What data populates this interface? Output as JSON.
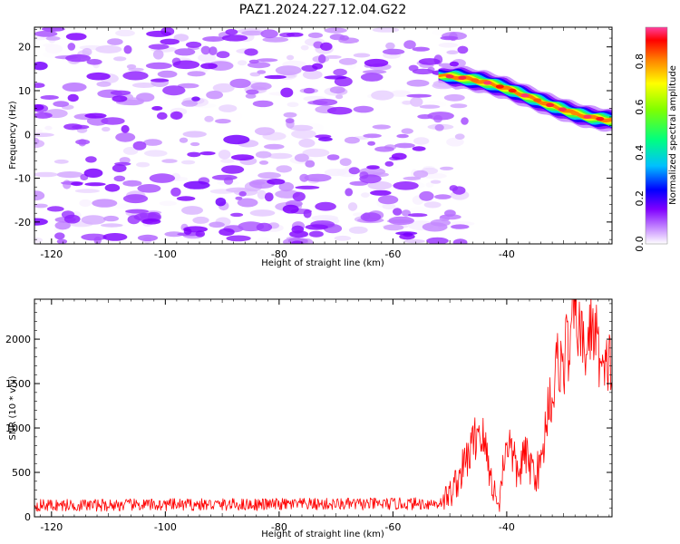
{
  "figure_title": "PAZ1.2024.227.12.04.G22",
  "chart_data": [
    {
      "type": "heatmap",
      "title": "PAZ1.2024.227.12.04.G22",
      "xlabel": "Height of straight line (km)",
      "ylabel": "Frequency (Hz)",
      "xlim": [
        -123,
        -21.5
      ],
      "ylim": [
        -25,
        24.5
      ],
      "xticks": [
        -120,
        -100,
        -80,
        -60,
        -40
      ],
      "yticks": [
        -20,
        -10,
        0,
        10,
        20
      ],
      "grid": false,
      "colorbar": {
        "label": "Normalized spectral amplitude",
        "range": [
          0,
          0.95
        ],
        "ticks": [
          0.0,
          0.2,
          0.4,
          0.6,
          0.8
        ],
        "colormap": [
          "#ffffff",
          "#c080ff",
          "#8000ff",
          "#0000ff",
          "#00c0ff",
          "#00ff80",
          "#80ff00",
          "#ffff00",
          "#ff8000",
          "#ff0000",
          "#ff40a0"
        ]
      },
      "noise_region": {
        "x_range": [
          -123,
          -47
        ],
        "amplitude_range": [
          0.0,
          0.2
        ]
      },
      "signal_ridge": {
        "x": [
          -52,
          -48,
          -44,
          -40,
          -36,
          -32,
          -28,
          -25,
          -21.5
        ],
        "y": [
          13.5,
          13.0,
          12.0,
          10.5,
          8.5,
          6.5,
          4.8,
          3.8,
          3.2
        ],
        "peak_amplitude": 0.95
      }
    },
    {
      "type": "line",
      "xlabel": "Height of straight line (km)",
      "ylabel": "SNR (10 * v/v)",
      "xlim": [
        -123,
        -21.5
      ],
      "ylim": [
        0,
        2450
      ],
      "xticks": [
        -120,
        -100,
        -80,
        -60,
        -40
      ],
      "yticks": [
        0,
        500,
        1000,
        1500,
        2000
      ],
      "grid": false,
      "series": [
        {
          "color": "#ff0000",
          "x": [
            -123,
            -115,
            -100,
            -80,
            -60,
            -52,
            -50,
            -48,
            -46,
            -45,
            -44,
            -43,
            -42,
            -41.5,
            -41,
            -40,
            -39,
            -38,
            -37,
            -36,
            -35,
            -34,
            -33,
            -32.5,
            -32,
            -31,
            -30,
            -29.5,
            -29,
            -28,
            -27,
            -26,
            -25,
            -24,
            -23,
            -22,
            -21.5
          ],
          "y": [
            130,
            130,
            135,
            140,
            145,
            150,
            250,
            500,
            800,
            1000,
            850,
            500,
            250,
            100,
            350,
            900,
            700,
            450,
            700,
            600,
            500,
            550,
            1100,
            1400,
            1300,
            1800,
            1650,
            2000,
            1800,
            2420,
            2000,
            1850,
            2200,
            1950,
            1500,
            1800,
            1650
          ],
          "noise_amplitude": 70
        }
      ]
    }
  ]
}
